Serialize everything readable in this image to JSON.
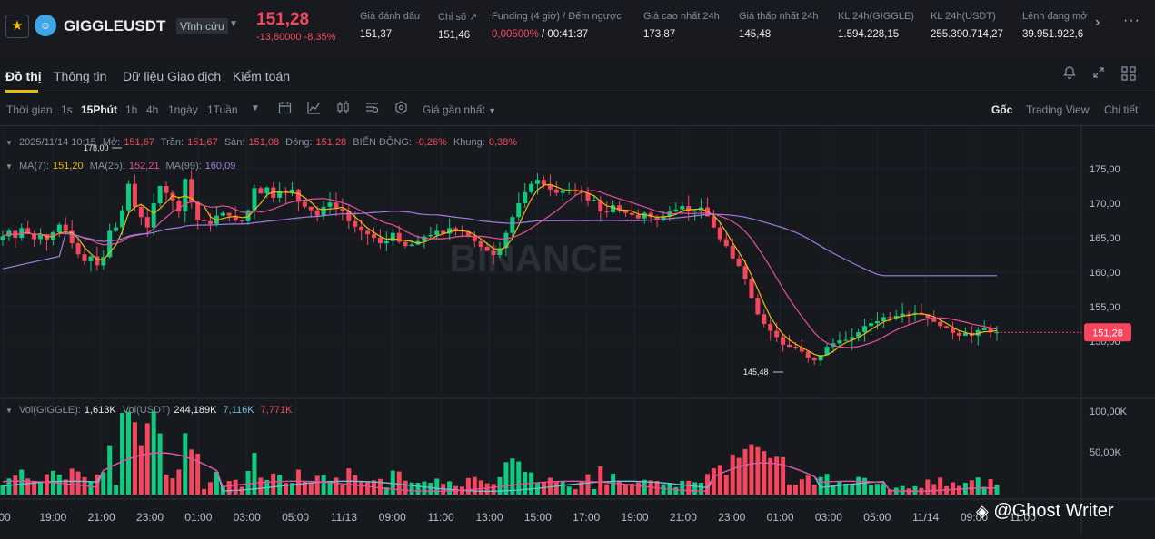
{
  "header": {
    "symbol": "GIGGLEUSDT",
    "contract_type": "Vĩnh cửu",
    "last_price": "151,28",
    "change": "-13,80000 -8,35%",
    "stats": [
      {
        "label": "Giá đánh dấu",
        "value": "151,37"
      },
      {
        "label": "Chỉ số ↗",
        "value": "151,46"
      },
      {
        "label": "Funding (4 giờ) / Đếm ngược",
        "value_red": "0,00500%",
        "value": " / 00:41:37"
      },
      {
        "label": "Giá cao nhất 24h",
        "value": "173,87"
      },
      {
        "label": "Giá thấp nhất 24h",
        "value": "145,48"
      },
      {
        "label": "KL 24h(GIGGLE)",
        "value": "1.594.228,15"
      },
      {
        "label": "KL 24h(USDT)",
        "value": "255.390.714,27"
      },
      {
        "label": "Lệnh đang mở",
        "value": "39.951.922,6"
      }
    ]
  },
  "tabs": [
    "Đồ thị",
    "Thông tin",
    "Dữ liệu Giao dịch",
    "Kiểm toán"
  ],
  "toolbar": {
    "time_label": "Thời gian",
    "intervals": [
      "1s",
      "15Phút",
      "1h",
      "4h",
      "1ngày",
      "1Tuần"
    ],
    "active_interval": "15Phút",
    "price_type": "Giá gần nhất",
    "views": [
      "Gốc",
      "Trading View",
      "Chi tiết"
    ],
    "active_view": "Gốc"
  },
  "ohlc": {
    "date": "2025/11/14 10:15",
    "open_label": "Mở:",
    "open": "151,67",
    "high_label": "Trần:",
    "high": "151,67",
    "low_label": "Sàn:",
    "low": "151,08",
    "close_label": "Đóng:",
    "close": "151,28",
    "change_label": "BIẾN ĐỘNG:",
    "change": "-0,26%",
    "range_label": "Khung:",
    "range": "0,38%"
  },
  "ma": {
    "ma7_label": "MA(7):",
    "ma7": "151,20",
    "ma7_color": "#f0b90b",
    "ma25_label": "MA(25):",
    "ma25": "152,21",
    "ma25_color": "#e84f9c",
    "ma99_label": "MA(99):",
    "ma99": "160,09",
    "ma99_color": "#a37ce0"
  },
  "volume_legend": {
    "vol_label": "Vol(GIGGLE):",
    "vol": "1,613K",
    "usdt_label": "Vol(USDT)",
    "usdt": "244,189K",
    "ma1": "7,116K",
    "ma2": "7,771K"
  },
  "price_axis": [
    "175,00",
    "170,00",
    "165,00",
    "160,00",
    "155,00",
    "150,00"
  ],
  "volume_axis": [
    "100,00K",
    "50,00K"
  ],
  "time_axis": [
    "00",
    "19:00",
    "21:00",
    "23:00",
    "01:00",
    "03:00",
    "05:00",
    "11/13",
    "09:00",
    "11:00",
    "13:00",
    "15:00",
    "17:00",
    "19:00",
    "21:00",
    "23:00",
    "01:00",
    "03:00",
    "05:00",
    "11/14",
    "09:00",
    "11:00"
  ],
  "annotations": {
    "high": "178,00",
    "low": "145,48"
  },
  "current_price_tag": "151,28",
  "watermark_text": "BINANCE",
  "overlay_text": "@Ghost Writer",
  "chart_data": {
    "type": "candlestick",
    "interval": "15m",
    "y_range": [
      145,
      178
    ],
    "closes": [
      165.2,
      166.0,
      165.0,
      166.4,
      165.6,
      164.8,
      165.5,
      164.6,
      165.8,
      166.9,
      166.0,
      164.2,
      162.6,
      161.6,
      162.3,
      161.0,
      162.2,
      166.0,
      166.5,
      169.0,
      172.8,
      169.5,
      168.0,
      166.5,
      170.0,
      172.5,
      171.5,
      170.4,
      168.8,
      173.5,
      170.2,
      167.5,
      167.4,
      167.0,
      168.2,
      168.6,
      168.2,
      167.5,
      167.4,
      169.0,
      172.2,
      171.4,
      172.3,
      170.8,
      171.8,
      171.5,
      172.0,
      170.2,
      169.5,
      169.0,
      168.2,
      169.5,
      170.1,
      169.2,
      168.9,
      167.4,
      166.6,
      166.0,
      165.5,
      165.0,
      164.2,
      164.5,
      165.7,
      164.4,
      163.8,
      164.0,
      164.5,
      165.2,
      165.4,
      166.0,
      165.6,
      166.4,
      166.1,
      165.9,
      165.2,
      164.5,
      163.7,
      163.1,
      162.5,
      163.5,
      165.7,
      168.0,
      170.0,
      171.6,
      172.8,
      173.4,
      172.7,
      172.0,
      171.5,
      171.8,
      172.0,
      171.9,
      171.5,
      170.4,
      170.5,
      168.8,
      168.7,
      169.7,
      169.0,
      168.6,
      168.3,
      167.8,
      168.6,
      168.0,
      167.5,
      168.1,
      168.8,
      169.1,
      169.6,
      168.8,
      169.0,
      169.4,
      168.1,
      166.5,
      164.8,
      163.8,
      162.0,
      160.9,
      159.0,
      156.3,
      153.9,
      152.5,
      151.5,
      150.6,
      149.5,
      149.2,
      149.1,
      148.5,
      147.6,
      147.2,
      148.0,
      149.2,
      149.7,
      150.1,
      150.2,
      150.6,
      151.3,
      152.2,
      152.6,
      152.9,
      153.5,
      153.4,
      153.7,
      154.0,
      153.9,
      154.1,
      153.9,
      153.4,
      152.8,
      152.2,
      151.9,
      151.2,
      150.8,
      151.2,
      150.8,
      151.6,
      151.9,
      151.3,
      151.3
    ],
    "ma7_end": 151.2,
    "ma25_end": 152.21,
    "ma99_end": 160.09,
    "volume_y_range": [
      0,
      110
    ],
    "volume_unit": "K"
  }
}
